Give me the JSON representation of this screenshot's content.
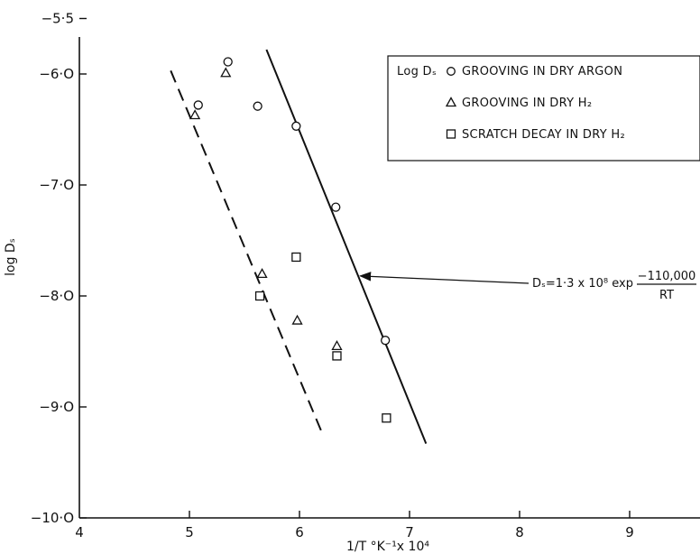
{
  "chart_data": {
    "type": "scatter",
    "title": "",
    "xlabel": "1/T °K⁻¹x 10⁴",
    "ylabel": "log Dₛ",
    "xlim": [
      4,
      9.8
    ],
    "ylim": [
      -10.0,
      -5.5
    ],
    "x_ticks": [
      4,
      5,
      6,
      7,
      8,
      9
    ],
    "x_tick_labels": [
      "4",
      "5",
      "6",
      "7",
      "8",
      "9"
    ],
    "y_ticks": [
      -10.0,
      -9.0,
      -8.0,
      -7.0,
      -6.0,
      -5.5
    ],
    "y_tick_labels": [
      "−10·O",
      "−9·O",
      "−8·O",
      "−7·O",
      "−6·O",
      "−5·5"
    ],
    "grid": false,
    "legend_title": "Log Dₛ",
    "legend_position": "top-right",
    "series": [
      {
        "name": "GROOVING IN DRY ARGON",
        "marker": "circle",
        "points": [
          [
            5.08,
            -6.28
          ],
          [
            5.35,
            -5.89
          ],
          [
            5.62,
            -6.29
          ],
          [
            5.97,
            -6.47
          ],
          [
            6.33,
            -7.2
          ],
          [
            6.78,
            -8.4
          ]
        ]
      },
      {
        "name": "GROOVING IN DRY H₂",
        "marker": "triangle",
        "points": [
          [
            5.05,
            -6.37
          ],
          [
            5.33,
            -5.99
          ],
          [
            5.66,
            -7.8
          ],
          [
            5.98,
            -8.22
          ],
          [
            6.34,
            -8.45
          ]
        ]
      },
      {
        "name": "SCRATCH DECAY IN DRY H₂",
        "marker": "square",
        "points": [
          [
            5.64,
            -8.0
          ],
          [
            5.97,
            -7.65
          ],
          [
            6.34,
            -8.54
          ],
          [
            6.79,
            -9.1
          ]
        ]
      }
    ],
    "lines": [
      {
        "style": "solid",
        "points": [
          [
            5.7,
            -5.78
          ],
          [
            7.15,
            -9.33
          ]
        ]
      },
      {
        "style": "dashed",
        "points": [
          [
            4.83,
            -5.97
          ],
          [
            6.22,
            -9.27
          ]
        ]
      }
    ],
    "annotation": {
      "lhs": "Dₛ=1·3 x 10⁸ exp",
      "numerator": "−110,000",
      "denominator": "RT",
      "arrow_to": [
        6.52,
        -7.82
      ]
    }
  }
}
